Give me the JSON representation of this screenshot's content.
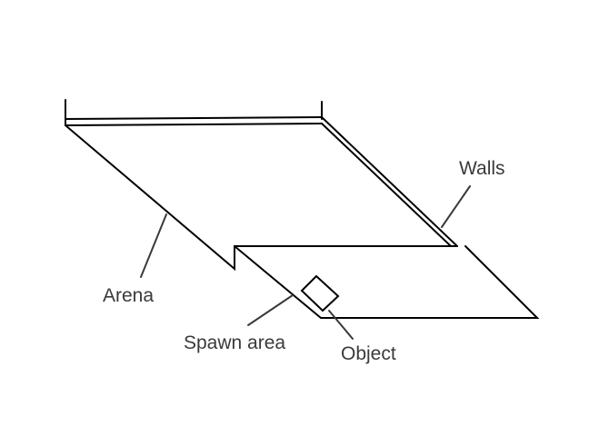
{
  "labels": {
    "walls": "Walls",
    "arena": "Arena",
    "spawn_area": "Spawn area",
    "object": "Object"
  },
  "colors": {
    "stroke": "#000000",
    "leader": "#3a3a3a",
    "text": "#3a3a3a",
    "background": "#ffffff"
  }
}
